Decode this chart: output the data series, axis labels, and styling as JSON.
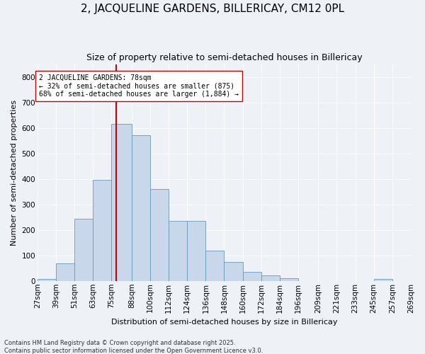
{
  "title": "2, JACQUELINE GARDENS, BILLERICAY, CM12 0PL",
  "subtitle": "Size of property relative to semi-detached houses in Billericay",
  "xlabel": "Distribution of semi-detached houses by size in Billericay",
  "ylabel": "Number of semi-detached properties",
  "bin_labels": [
    "27sqm",
    "39sqm",
    "51sqm",
    "63sqm",
    "75sqm",
    "88sqm",
    "100sqm",
    "112sqm",
    "124sqm",
    "136sqm",
    "148sqm",
    "160sqm",
    "172sqm",
    "184sqm",
    "196sqm",
    "209sqm",
    "221sqm",
    "233sqm",
    "245sqm",
    "257sqm",
    "269sqm"
  ],
  "bin_edges": [
    27,
    39,
    51,
    63,
    75,
    88,
    100,
    112,
    124,
    136,
    148,
    160,
    172,
    184,
    196,
    209,
    221,
    233,
    245,
    257,
    269
  ],
  "counts": [
    8,
    70,
    245,
    395,
    615,
    570,
    360,
    235,
    235,
    120,
    75,
    35,
    22,
    10,
    0,
    0,
    0,
    0,
    8,
    0,
    0
  ],
  "bar_color": "#c8d8ea",
  "bar_edge_color": "#6699bb",
  "property_size": 78,
  "property_line_color": "#cc0000",
  "annotation_text": "2 JACQUELINE GARDENS: 78sqm\n← 32% of semi-detached houses are smaller (875)\n68% of semi-detached houses are larger (1,884) →",
  "annotation_box_color": "#ffffff",
  "annotation_box_edge": "#cc0000",
  "ylim": [
    0,
    850
  ],
  "yticks": [
    0,
    100,
    200,
    300,
    400,
    500,
    600,
    700,
    800
  ],
  "footer_text": "Contains HM Land Registry data © Crown copyright and database right 2025.\nContains public sector information licensed under the Open Government Licence v3.0.",
  "background_color": "#eef2f7",
  "grid_color": "#ffffff",
  "title_fontsize": 11,
  "subtitle_fontsize": 9,
  "axis_fontsize": 8,
  "tick_fontsize": 7.5,
  "footer_fontsize": 6
}
